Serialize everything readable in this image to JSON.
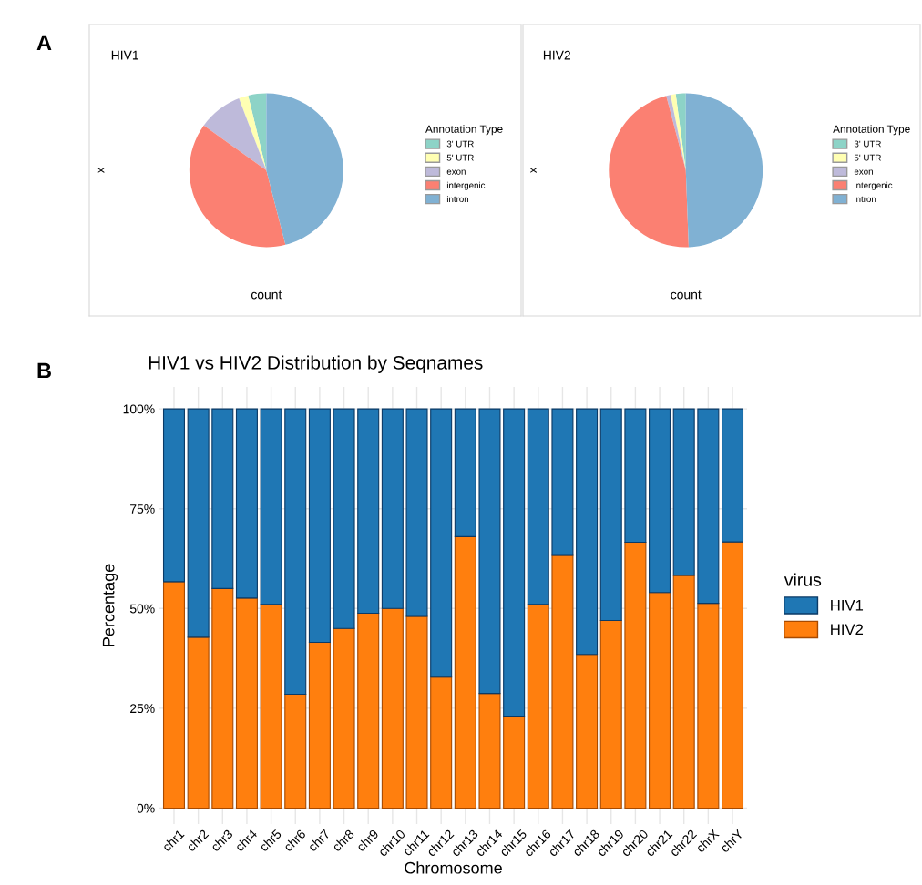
{
  "chart_data": [
    {
      "type": "pie",
      "title": "HIV1",
      "xlabel": "count",
      "ylabel": "x",
      "legend_title": "Annotation Type",
      "legend": "right",
      "categories": [
        "3' UTR",
        "5' UTR",
        "exon",
        "intergenic",
        "intron"
      ],
      "values": [
        3.8,
        2.0,
        9.3,
        38.9,
        46.0
      ],
      "colors": [
        "#8dd3c7",
        "#ffffb3",
        "#bebada",
        "#fb8072",
        "#80b1d3"
      ],
      "annotations": [
        "A"
      ]
    },
    {
      "type": "pie",
      "title": "HIV2",
      "xlabel": "count",
      "ylabel": "x",
      "legend_title": "Annotation Type",
      "legend": "right",
      "categories": [
        "3' UTR",
        "5' UTR",
        "exon",
        "intergenic",
        "intron"
      ],
      "values": [
        2.1,
        1.1,
        0.9,
        46.5,
        49.4
      ],
      "colors": [
        "#8dd3c7",
        "#ffffb3",
        "#bebada",
        "#fb8072",
        "#80b1d3"
      ]
    },
    {
      "type": "bar",
      "stacked": true,
      "title": "HIV1 vs HIV2 Distribution by Seqnames",
      "xlabel": "Chromosome",
      "ylabel": "Percentage",
      "legend_title": "virus",
      "legend": "right",
      "grid": true,
      "categories": [
        "chr1",
        "chr2",
        "chr3",
        "chr4",
        "chr5",
        "chr6",
        "chr7",
        "chr8",
        "chr9",
        "chr10",
        "chr11",
        "chr12",
        "chr13",
        "chr14",
        "chr15",
        "chr16",
        "chr17",
        "chr18",
        "chr19",
        "chr20",
        "chr21",
        "chr22",
        "chrX",
        "chrY"
      ],
      "series": [
        {
          "name": "HIV2",
          "color": "#ff7f0e",
          "values": [
            56.7,
            42.8,
            55,
            52.6,
            51,
            28.5,
            41.5,
            45,
            48.8,
            50,
            48,
            32.8,
            68,
            28.7,
            23,
            51,
            63.3,
            38.5,
            47,
            66.6,
            54,
            58.3,
            51.3,
            66.7
          ]
        },
        {
          "name": "HIV1",
          "color": "#1f77b4",
          "values": [
            43.3,
            57.2,
            45,
            47.4,
            49,
            71.5,
            58.5,
            55,
            51.2,
            50,
            52,
            67.2,
            32,
            71.3,
            77,
            49,
            36.7,
            61.5,
            53,
            33.4,
            46,
            41.7,
            48.7,
            33.3
          ]
        }
      ],
      "ylim": [
        -4,
        105.5
      ],
      "yticks": [
        {
          "value": 0,
          "label": "0%"
        },
        {
          "value": 25,
          "label": "25%"
        },
        {
          "value": 50,
          "label": "50%"
        },
        {
          "value": 75,
          "label": "75%"
        },
        {
          "value": 100,
          "label": "100%"
        }
      ],
      "annotations": [
        "B"
      ]
    }
  ]
}
